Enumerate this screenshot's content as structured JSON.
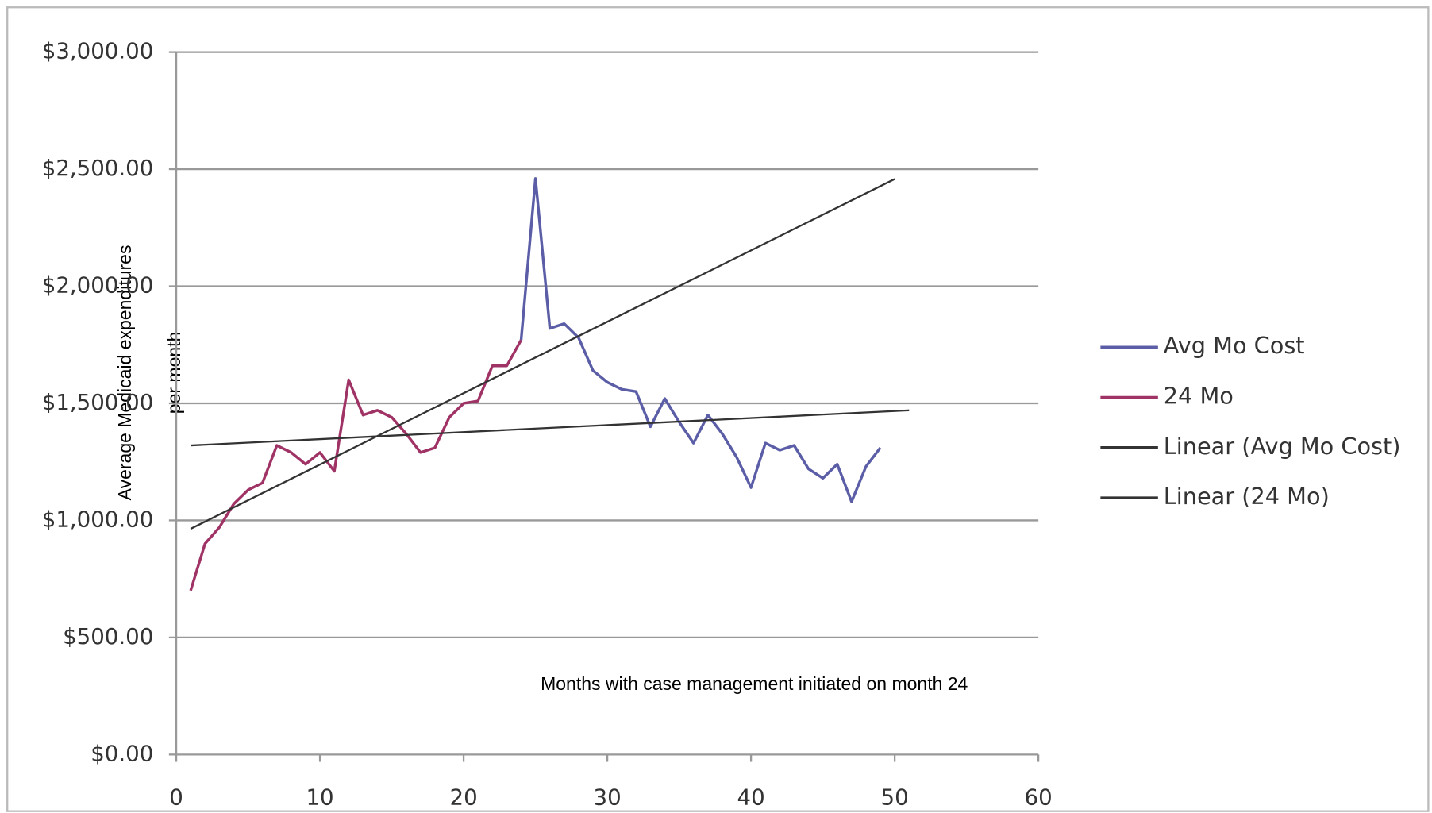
{
  "chart_data": {
    "type": "line",
    "y_label": [
      "Average Medicaid expenditures",
      "per month"
    ],
    "x_label": "Months with case management initiated on month 24",
    "xlim": [
      0,
      60
    ],
    "xticks": [
      0,
      10,
      20,
      30,
      40,
      50,
      60
    ],
    "ylim": [
      0,
      3000
    ],
    "yticks": [
      {
        "value": 0,
        "label": "$0.00"
      },
      {
        "value": 500,
        "label": "$500.00"
      },
      {
        "value": 1000,
        "label": "$1,000.00"
      },
      {
        "value": 1500,
        "label": "$1,500.00"
      },
      {
        "value": 2000,
        "label": "$2,000.00"
      },
      {
        "value": 2500,
        "label": "$2,500.00"
      },
      {
        "value": 3000,
        "label": "$3,000.00"
      }
    ],
    "grid": true,
    "series": [
      {
        "name": "Avg Mo Cost",
        "color": "#5b5ea6",
        "x": [
          24,
          25,
          26,
          27,
          28,
          29,
          30,
          31,
          32,
          33,
          34,
          35,
          36,
          37,
          38,
          39,
          40,
          41,
          42,
          43,
          44,
          45,
          46,
          47,
          48,
          49
        ],
        "values": [
          1770,
          2460,
          1820,
          1840,
          1780,
          1640,
          1590,
          1560,
          1550,
          1400,
          1520,
          1420,
          1330,
          1450,
          1370,
          1270,
          1140,
          1330,
          1300,
          1320,
          1220,
          1180,
          1240,
          1080,
          1230,
          1310
        ]
      },
      {
        "name": "24 Mo",
        "color": "#a03366",
        "x": [
          1,
          2,
          3,
          4,
          5,
          6,
          7,
          8,
          9,
          10,
          11,
          12,
          13,
          14,
          15,
          16,
          17,
          18,
          19,
          20,
          21,
          22,
          23,
          24
        ],
        "values": [
          700,
          900,
          970,
          1070,
          1130,
          1160,
          1320,
          1290,
          1240,
          1290,
          1210,
          1600,
          1450,
          1470,
          1440,
          1370,
          1290,
          1310,
          1440,
          1500,
          1510,
          1660,
          1660,
          1770
        ]
      },
      {
        "name": "Linear (Avg Mo Cost)",
        "color": "#333333",
        "x": [
          1,
          51
        ],
        "values": [
          1320,
          1470
        ]
      },
      {
        "name": "Linear (24 Mo)",
        "color": "#333333",
        "x": [
          1,
          50
        ],
        "values": [
          964,
          2458
        ]
      }
    ]
  }
}
